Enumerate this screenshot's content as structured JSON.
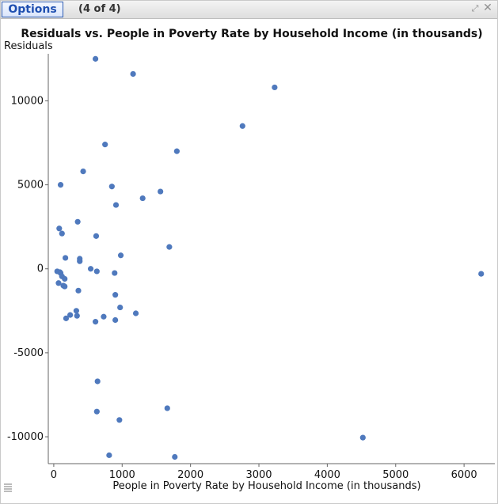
{
  "window": {
    "options_label": "Options",
    "page_indicator": "(4 of 4)",
    "expand_icon": "expand-icon",
    "close_icon": "close-icon"
  },
  "chart_data": {
    "type": "scatter",
    "title": "Residuals vs. People in Poverty Rate by Household Income (in thousands)",
    "xlabel": "People in Poverty Rate by Household Income (in thousands)",
    "ylabel": "Residuals",
    "xlim": [
      -80,
      6450
    ],
    "ylim": [
      -11600,
      12800
    ],
    "xticks": [
      0,
      1000,
      2000,
      3000,
      4000,
      5000,
      6000
    ],
    "yticks": [
      -10000,
      -5000,
      0,
      5000,
      10000
    ],
    "x_tick_labels": [
      "0",
      "1000",
      "2000",
      "3000",
      "4000",
      "5000",
      "6000"
    ],
    "y_tick_labels": [
      "-10000",
      "-5000",
      "0",
      "5000",
      "10000"
    ],
    "marker_color": "#4f79bd",
    "points": [
      {
        "x": 610,
        "y": 12500
      },
      {
        "x": 1160,
        "y": 11600
      },
      {
        "x": 3230,
        "y": 10800
      },
      {
        "x": 2760,
        "y": 8500
      },
      {
        "x": 750,
        "y": 7400
      },
      {
        "x": 1800,
        "y": 7000
      },
      {
        "x": 430,
        "y": 5800
      },
      {
        "x": 100,
        "y": 5000
      },
      {
        "x": 850,
        "y": 4900
      },
      {
        "x": 1560,
        "y": 4600
      },
      {
        "x": 1300,
        "y": 4200
      },
      {
        "x": 910,
        "y": 3800
      },
      {
        "x": 350,
        "y": 2800
      },
      {
        "x": 80,
        "y": 2400
      },
      {
        "x": 120,
        "y": 2100
      },
      {
        "x": 620,
        "y": 1950
      },
      {
        "x": 1690,
        "y": 1300
      },
      {
        "x": 980,
        "y": 800
      },
      {
        "x": 170,
        "y": 650
      },
      {
        "x": 380,
        "y": 600
      },
      {
        "x": 380,
        "y": 450
      },
      {
        "x": 540,
        "y": 0
      },
      {
        "x": 50,
        "y": -150
      },
      {
        "x": 90,
        "y": -200
      },
      {
        "x": 100,
        "y": -250
      },
      {
        "x": 120,
        "y": -450
      },
      {
        "x": 160,
        "y": -600
      },
      {
        "x": 630,
        "y": -150
      },
      {
        "x": 890,
        "y": -250
      },
      {
        "x": 6250,
        "y": -300
      },
      {
        "x": 70,
        "y": -850
      },
      {
        "x": 140,
        "y": -1000
      },
      {
        "x": 160,
        "y": -1050
      },
      {
        "x": 360,
        "y": -1300
      },
      {
        "x": 900,
        "y": -1550
      },
      {
        "x": 970,
        "y": -2300
      },
      {
        "x": 1200,
        "y": -2650
      },
      {
        "x": 330,
        "y": -2500
      },
      {
        "x": 240,
        "y": -2750
      },
      {
        "x": 340,
        "y": -2800
      },
      {
        "x": 730,
        "y": -2850
      },
      {
        "x": 180,
        "y": -2950
      },
      {
        "x": 610,
        "y": -3150
      },
      {
        "x": 900,
        "y": -3050
      },
      {
        "x": 640,
        "y": -6700
      },
      {
        "x": 630,
        "y": -8500
      },
      {
        "x": 1660,
        "y": -8300
      },
      {
        "x": 960,
        "y": -9000
      },
      {
        "x": 4520,
        "y": -10050
      },
      {
        "x": 810,
        "y": -11100
      },
      {
        "x": 1770,
        "y": -11200
      }
    ]
  }
}
